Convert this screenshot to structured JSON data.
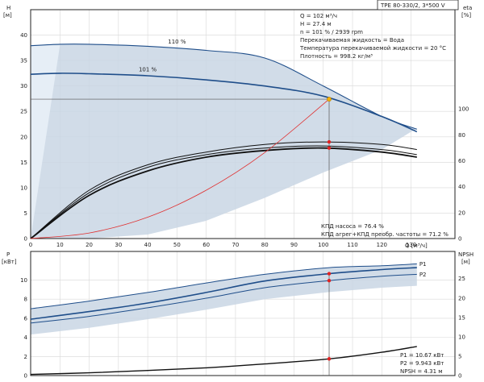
{
  "title_box": "TPE 80-330/2, 3*500 V",
  "info_lines": [
    "Q = 102 м³/ч",
    "H = 27.4 м",
    "n = 101 % / 2939 rpm",
    "Перекачиваемая жидкость = Вода",
    "Температура перекачиваемой жидкости = 20 °C",
    "Плотность = 998.2 кг/м³"
  ],
  "eff_lines": [
    "КПД насоса = 76.4 %",
    "КПД агрег+КПД преобр. частоты = 71.2 %"
  ],
  "power_lines": [
    "P1 = 10.67 кВт",
    "P2 = 9.943 кВт",
    "NPSH = 4.31 м"
  ],
  "axis_text": {
    "h_name": "H",
    "h_unit": "[м]",
    "eta_name": "eta",
    "eta_unit": "[%]",
    "p_name": "P",
    "p_unit": "[кВт]",
    "npsh_name": "NPSH",
    "npsh_unit": "[м]",
    "q_label": "Q [м³/ч]"
  },
  "chart_data": [
    {
      "type": "line",
      "panel": "head",
      "x_ticks": [
        0,
        10,
        20,
        30,
        40,
        50,
        60,
        70,
        80,
        90,
        100,
        110,
        120,
        130
      ],
      "xlim": [
        0,
        145
      ],
      "h_ticks": [
        0,
        5,
        10,
        15,
        20,
        25,
        30,
        35,
        40
      ],
      "hlim": [
        0,
        45
      ],
      "eta_ticks": [
        0,
        20,
        40,
        60,
        80,
        100
      ],
      "series": [
        {
          "name": "110 %",
          "label_at": [
            50,
            38
          ],
          "x": [
            0,
            10,
            20,
            40,
            60,
            80,
            100,
            120,
            132
          ],
          "y": [
            37.9,
            38.2,
            38.2,
            37.8,
            37.0,
            35.5,
            30.0,
            24.0,
            21.5
          ]
        },
        {
          "name": "101 %",
          "label_at": [
            40,
            32.6
          ],
          "x": [
            0,
            10,
            20,
            40,
            60,
            80,
            100,
            120,
            132
          ],
          "y": [
            32.3,
            32.5,
            32.4,
            32.0,
            31.2,
            30.0,
            28.0,
            24.0,
            21.0
          ]
        },
        {
          "x": [
            0,
            20,
            40,
            60,
            80,
            100,
            120,
            132
          ],
          "y": [
            0,
            9.5,
            14.5,
            17.0,
            18.5,
            19.0,
            18.5,
            17.5
          ]
        },
        {
          "x": [
            0,
            20,
            40,
            60,
            80,
            100,
            120,
            132
          ],
          "y": [
            0,
            9.0,
            14.0,
            16.5,
            17.8,
            18.2,
            17.5,
            16.5
          ]
        },
        {
          "x": [
            0,
            20,
            40,
            60,
            80,
            100,
            120,
            132
          ],
          "y": [
            0,
            8.5,
            13.3,
            16.0,
            17.3,
            17.8,
            17.0,
            16.0
          ]
        }
      ],
      "system_curve": {
        "x": [
          0,
          20,
          40,
          60,
          80,
          102
        ],
        "y": [
          0,
          1.1,
          4.2,
          9.5,
          16.9,
          27.4
        ]
      },
      "duty_point": {
        "x": 102,
        "y": 27.4
      },
      "markers": [
        {
          "x": 102,
          "y": 19.0
        },
        {
          "x": 102,
          "y": 17.8
        }
      ]
    },
    {
      "type": "line",
      "panel": "power",
      "x_ticks": [
        0,
        10,
        20,
        30,
        40,
        50,
        60,
        70,
        80,
        90,
        100,
        110,
        120,
        130
      ],
      "xlim": [
        0,
        145
      ],
      "p_ticks": [
        0,
        2,
        4,
        6,
        8,
        10
      ],
      "plim": [
        0,
        13
      ],
      "npsh_ticks": [
        0,
        5,
        10,
        15,
        20,
        25
      ],
      "npshlim": [
        0,
        32
      ],
      "series": [
        {
          "name": "P1",
          "x": [
            0,
            20,
            40,
            60,
            80,
            102,
            120,
            132
          ],
          "y": [
            7.0,
            7.8,
            8.7,
            9.7,
            10.6,
            11.3,
            11.5,
            11.7
          ]
        },
        {
          "x": [
            0,
            20,
            40,
            60,
            80,
            102,
            120,
            132
          ],
          "y": [
            5.9,
            6.7,
            7.6,
            8.7,
            9.9,
            10.67,
            11.1,
            11.3
          ]
        },
        {
          "name": "P2",
          "x": [
            0,
            20,
            40,
            60,
            80,
            102,
            120,
            132
          ],
          "y": [
            5.5,
            6.2,
            7.1,
            8.1,
            9.2,
            9.943,
            10.4,
            10.6
          ]
        },
        {
          "x": [
            0,
            20,
            40,
            60,
            80,
            102,
            120,
            132
          ],
          "y": [
            0.3,
            0.7,
            1.3,
            2.0,
            3.0,
            4.31,
            6.0,
            7.5
          ],
          "axis": "npsh"
        }
      ],
      "markers": [
        {
          "x": 102,
          "y": 10.67
        },
        {
          "x": 102,
          "y": 9.943
        },
        {
          "x": 102,
          "y": 4.31,
          "axis": "npsh"
        }
      ]
    }
  ]
}
